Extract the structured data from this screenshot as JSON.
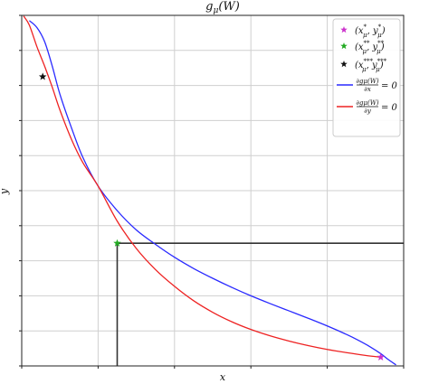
{
  "chart_data": {
    "type": "line",
    "title": "g_μ(W)",
    "xlabel": "x",
    "ylabel": "y",
    "xlim": [
      0,
      1
    ],
    "ylim": [
      0,
      1
    ],
    "grid": true,
    "legend_position": "top-right",
    "series": [
      {
        "name": "∂gμ(W)/∂x = 0",
        "color": "#2a2aff",
        "x": [
          0.02,
          0.04,
          0.06,
          0.08,
          0.1,
          0.13,
          0.16,
          0.2,
          0.25,
          0.3,
          0.35,
          0.4,
          0.45,
          0.5,
          0.55,
          0.6,
          0.65,
          0.7,
          0.75,
          0.8,
          0.85,
          0.88,
          0.91,
          0.94,
          0.96,
          0.98
        ],
        "y": [
          0.985,
          0.965,
          0.925,
          0.855,
          0.775,
          0.68,
          0.595,
          0.513,
          0.443,
          0.388,
          0.347,
          0.31,
          0.278,
          0.25,
          0.224,
          0.2,
          0.178,
          0.157,
          0.136,
          0.114,
          0.09,
          0.074,
          0.056,
          0.035,
          0.018,
          0.003
        ]
      },
      {
        "name": "∂gμ(W)/∂y = 0",
        "color": "#ee2222",
        "x": [
          0.005,
          0.02,
          0.04,
          0.06,
          0.08,
          0.1,
          0.13,
          0.16,
          0.2,
          0.25,
          0.3,
          0.35,
          0.4,
          0.45,
          0.5,
          0.55,
          0.6,
          0.65,
          0.7,
          0.75,
          0.8,
          0.85,
          0.9,
          0.94
        ],
        "y": [
          0.998,
          0.972,
          0.91,
          0.855,
          0.795,
          0.73,
          0.647,
          0.58,
          0.513,
          0.413,
          0.335,
          0.275,
          0.227,
          0.186,
          0.153,
          0.126,
          0.104,
          0.086,
          0.071,
          0.058,
          0.047,
          0.038,
          0.03,
          0.025
        ]
      }
    ],
    "markers": [
      {
        "label": "(x*μ, y*μ)",
        "color": "#cc33cc",
        "x": 0.94,
        "y": 0.025
      },
      {
        "label": "(x**μ, y**μ)",
        "color": "#22aa22",
        "x": 0.25,
        "y": 0.35
      },
      {
        "label": "(x***μ, y***μ)",
        "color": "#111111",
        "x": 0.055,
        "y": 0.825
      }
    ],
    "reference_point": {
      "x": 0.25,
      "y": 0.35
    }
  },
  "legend": {
    "entries": [
      {
        "kind": "marker",
        "color": "#cc33cc",
        "base": "(x",
        "sup1": "*",
        "mid": ", y",
        "sup2": "*",
        "end": ")"
      },
      {
        "kind": "marker",
        "color": "#22aa22",
        "base": "(x",
        "sup1": "**",
        "mid": ", y",
        "sup2": "**",
        "end": ")"
      },
      {
        "kind": "marker",
        "color": "#111111",
        "base": "(x",
        "sup1": "***",
        "mid": ", y",
        "sup2": "***",
        "end": ")"
      },
      {
        "kind": "line",
        "color": "#2a2aff",
        "num": "∂gμ(W)",
        "den": "∂x",
        "rhs": "= 0"
      },
      {
        "kind": "line",
        "color": "#ee2222",
        "num": "∂gμ(W)",
        "den": "∂y",
        "rhs": "= 0"
      }
    ],
    "subscript": "μ"
  }
}
